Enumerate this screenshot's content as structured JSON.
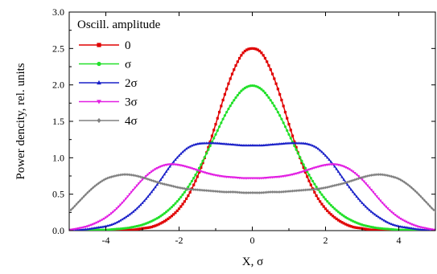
{
  "chart_data": {
    "type": "line",
    "title": "",
    "xlabel": "X, σ",
    "ylabel": "Power dencity, rel. units",
    "xlim": [
      -5,
      5
    ],
    "ylim": [
      0,
      3.0
    ],
    "xticks": [
      -4,
      -2,
      0,
      2,
      4
    ],
    "xtick_labels": [
      "-4",
      "-2",
      "0",
      "2",
      "4"
    ],
    "yticks": [
      0,
      0.5,
      1.0,
      1.5,
      2.0,
      2.5,
      3.0
    ],
    "ytick_labels": [
      "0.0",
      "0.5",
      "1.0",
      "1.5",
      "2.0",
      "2.5",
      "3.0"
    ],
    "grid": false,
    "legend": {
      "title": "Oscill. amplitude",
      "placement": "top-left"
    },
    "x": [
      -5,
      -4.75,
      -4.5,
      -4.25,
      -4,
      -3.75,
      -3.5,
      -3.25,
      -3,
      -2.75,
      -2.5,
      -2.25,
      -2,
      -1.75,
      -1.5,
      -1.25,
      -1,
      -0.75,
      -0.5,
      -0.25,
      0,
      0.25,
      0.5,
      0.75,
      1,
      1.25,
      1.5,
      1.75,
      2,
      2.25,
      2.5,
      2.75,
      3,
      3.25,
      3.5,
      3.75,
      4,
      4.25,
      4.5,
      4.75,
      5
    ],
    "series": [
      {
        "name": "0",
        "color": "#e00000",
        "marker": "square",
        "values": [
          0.0,
          0.0,
          0.0,
          0.0,
          0.0,
          0.0,
          0.01,
          0.01,
          0.03,
          0.05,
          0.1,
          0.18,
          0.3,
          0.48,
          0.74,
          1.07,
          1.46,
          1.87,
          2.21,
          2.44,
          2.5,
          2.44,
          2.21,
          1.87,
          1.46,
          1.07,
          0.74,
          0.48,
          0.3,
          0.18,
          0.1,
          0.05,
          0.03,
          0.01,
          0.01,
          0.0,
          0.0,
          0.0,
          0.0,
          0.0,
          0.0
        ]
      },
      {
        "name": "σ",
        "color": "#22e02a",
        "marker": "circle",
        "values": [
          0.0,
          0.0,
          0.0,
          0.01,
          0.01,
          0.02,
          0.03,
          0.05,
          0.08,
          0.13,
          0.2,
          0.3,
          0.43,
          0.6,
          0.81,
          1.06,
          1.32,
          1.58,
          1.79,
          1.94,
          1.99,
          1.94,
          1.79,
          1.58,
          1.32,
          1.06,
          0.81,
          0.6,
          0.43,
          0.3,
          0.2,
          0.13,
          0.08,
          0.05,
          0.03,
          0.02,
          0.01,
          0.01,
          0.0,
          0.0,
          0.0
        ]
      },
      {
        "name": "2σ",
        "color": "#1a20c8",
        "marker": "triangle-up",
        "values": [
          0.0,
          0.01,
          0.02,
          0.04,
          0.06,
          0.1,
          0.17,
          0.26,
          0.38,
          0.53,
          0.7,
          0.88,
          1.03,
          1.14,
          1.19,
          1.2,
          1.2,
          1.19,
          1.18,
          1.17,
          1.17,
          1.17,
          1.18,
          1.19,
          1.2,
          1.2,
          1.19,
          1.14,
          1.03,
          0.88,
          0.7,
          0.53,
          0.38,
          0.26,
          0.17,
          0.1,
          0.06,
          0.04,
          0.02,
          0.01,
          0.0
        ]
      },
      {
        "name": "3σ",
        "color": "#e21ee2",
        "marker": "triangle-down",
        "values": [
          0.01,
          0.03,
          0.06,
          0.11,
          0.18,
          0.28,
          0.41,
          0.56,
          0.7,
          0.81,
          0.88,
          0.91,
          0.9,
          0.87,
          0.83,
          0.79,
          0.76,
          0.74,
          0.73,
          0.72,
          0.72,
          0.72,
          0.73,
          0.74,
          0.76,
          0.79,
          0.83,
          0.87,
          0.9,
          0.91,
          0.88,
          0.81,
          0.7,
          0.56,
          0.41,
          0.28,
          0.18,
          0.11,
          0.06,
          0.03,
          0.01
        ]
      },
      {
        "name": "4σ",
        "color": "#808080",
        "marker": "diamond",
        "values": [
          0.27,
          0.39,
          0.52,
          0.63,
          0.71,
          0.75,
          0.77,
          0.76,
          0.73,
          0.69,
          0.65,
          0.62,
          0.59,
          0.57,
          0.56,
          0.55,
          0.54,
          0.53,
          0.53,
          0.52,
          0.52,
          0.52,
          0.53,
          0.53,
          0.54,
          0.55,
          0.56,
          0.57,
          0.59,
          0.62,
          0.65,
          0.69,
          0.73,
          0.76,
          0.77,
          0.75,
          0.71,
          0.63,
          0.52,
          0.39,
          0.27
        ]
      }
    ]
  }
}
